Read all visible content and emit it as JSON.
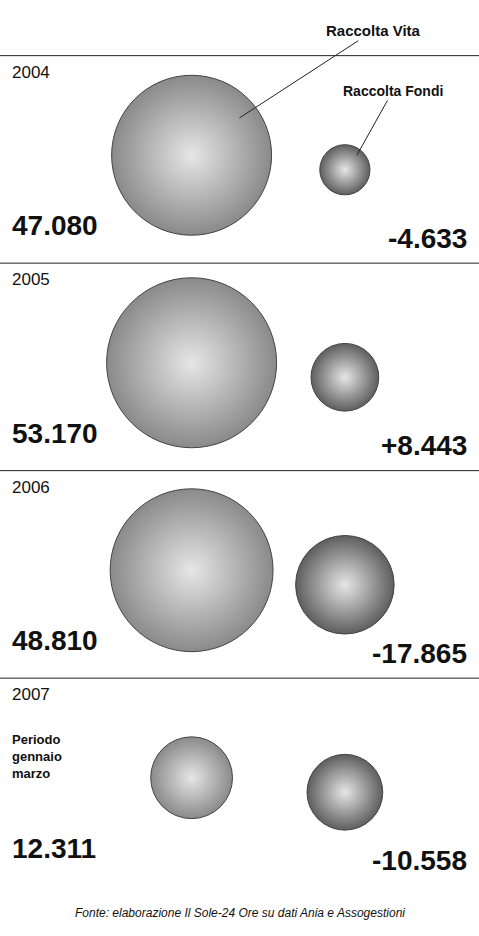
{
  "chart_data": {
    "type": "bubble",
    "categories": [
      "2004",
      "2005",
      "2006",
      "2007"
    ],
    "series": [
      {
        "name": "Raccolta Vita",
        "color": "#8a8a8a",
        "values": [
          47080,
          53170,
          48810,
          12311
        ],
        "value_labels": [
          "47.080",
          "53.170",
          "48.810",
          "12.311"
        ]
      },
      {
        "name": "Raccolta Fondi",
        "color": "#5e5e5e",
        "values": [
          -4633,
          8443,
          -17865,
          -10558
        ],
        "value_labels": [
          "-4.633",
          "+8.443",
          "-17.865",
          "-10.558"
        ]
      }
    ],
    "data_labels": true,
    "tick_labels": false,
    "grid": false,
    "annotations": [
      {
        "category": "2007",
        "text": "Periodo gennaio marzo"
      },
      {
        "text": "Fonte: elaborazione Il Sole-24 Ore su dati Ania e Assogestioni"
      }
    ]
  }
}
